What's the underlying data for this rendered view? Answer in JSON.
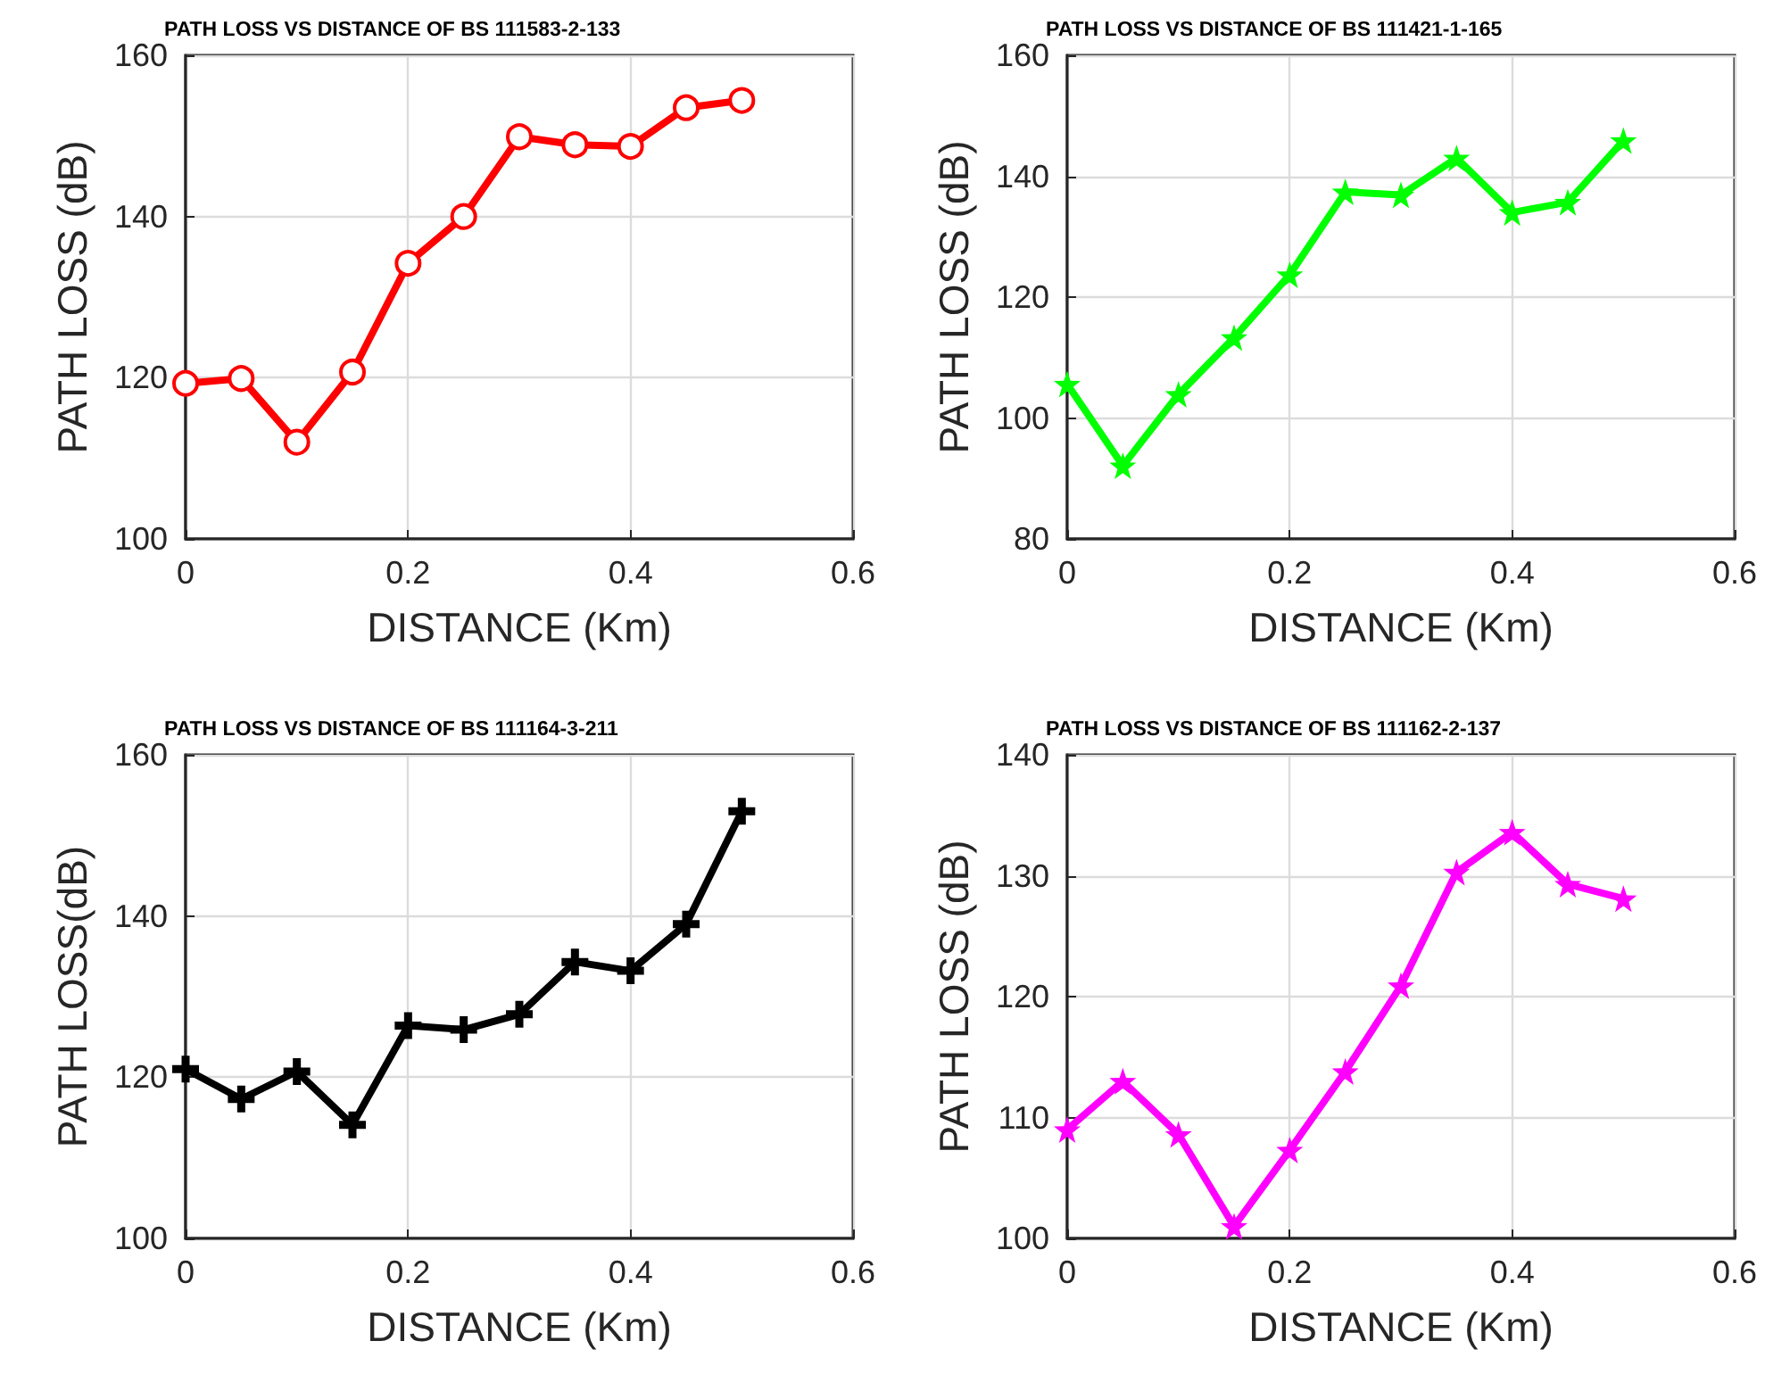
{
  "chart_data": [
    {
      "type": "line",
      "title": "PATH LOSS VS DISTANCE OF BS 111583-2-133",
      "xlabel": "DISTANCE (Km)",
      "ylabel": "PATH LOSS (dB)",
      "x": [
        0,
        0.05,
        0.1,
        0.15,
        0.2,
        0.25,
        0.3,
        0.35,
        0.4,
        0.45,
        0.5
      ],
      "xlim": [
        0,
        0.6
      ],
      "xticks": [
        0,
        0.2,
        0.4,
        0.6
      ],
      "ylim": [
        100,
        160
      ],
      "yticks": [
        100,
        120,
        140,
        160
      ],
      "grid": true,
      "marker": "circle",
      "series": [
        {
          "color": "#ff0000",
          "values": [
            119.3,
            119.9,
            112.0,
            120.7,
            134.2,
            140.0,
            149.9,
            148.9,
            148.7,
            153.5,
            154.4
          ]
        }
      ]
    },
    {
      "type": "line",
      "title": "PATH LOSS VS DISTANCE OF BS 111421-1-165",
      "xlabel": "DISTANCE (Km)",
      "ylabel": "PATH LOSS (dB)",
      "x": [
        0,
        0.05,
        0.1,
        0.15,
        0.2,
        0.25,
        0.3,
        0.35,
        0.4,
        0.45,
        0.5
      ],
      "xlim": [
        0,
        0.6
      ],
      "xticks": [
        0,
        0.2,
        0.4,
        0.6
      ],
      "ylim": [
        80,
        160
      ],
      "yticks": [
        80,
        100,
        120,
        140,
        160
      ],
      "grid": true,
      "marker": "star",
      "series": [
        {
          "color": "#00ff00",
          "values": [
            105.6,
            92.1,
            103.9,
            113.3,
            123.7,
            137.4,
            136.9,
            143.0,
            134.0,
            135.7,
            145.9
          ]
        }
      ]
    },
    {
      "type": "line",
      "title": "PATH LOSS VS DISTANCE OF BS 111164-3-211",
      "xlabel": "DISTANCE (Km)",
      "ylabel": "PATH LOSS(dB)",
      "x": [
        0,
        0.05,
        0.1,
        0.15,
        0.2,
        0.25,
        0.3,
        0.35,
        0.4,
        0.45,
        0.5
      ],
      "xlim": [
        0,
        0.6
      ],
      "xticks": [
        0,
        0.2,
        0.4,
        0.6
      ],
      "ylim": [
        100,
        160
      ],
      "yticks": [
        100,
        120,
        140,
        160
      ],
      "grid": true,
      "marker": "cross",
      "series": [
        {
          "color": "#000000",
          "values": [
            121.0,
            117.3,
            120.7,
            114.1,
            126.4,
            125.9,
            127.8,
            134.3,
            133.2,
            139.0,
            153.0
          ]
        }
      ]
    },
    {
      "type": "line",
      "title": "PATH LOSS VS DISTANCE OF BS 111162-2-137",
      "xlabel": "DISTANCE (Km)",
      "ylabel": "PATH LOSS (dB)",
      "x": [
        0,
        0.05,
        0.1,
        0.15,
        0.2,
        0.25,
        0.3,
        0.35,
        0.4,
        0.45,
        0.5
      ],
      "xlim": [
        0,
        0.6
      ],
      "xticks": [
        0,
        0.2,
        0.4,
        0.6
      ],
      "ylim": [
        100,
        140
      ],
      "yticks": [
        100,
        110,
        120,
        130,
        140
      ],
      "grid": true,
      "marker": "star",
      "series": [
        {
          "color": "#ff00ff",
          "values": [
            109.0,
            113.0,
            108.6,
            101.0,
            107.3,
            113.8,
            120.9,
            130.3,
            133.6,
            129.3,
            128.1
          ]
        }
      ]
    }
  ]
}
